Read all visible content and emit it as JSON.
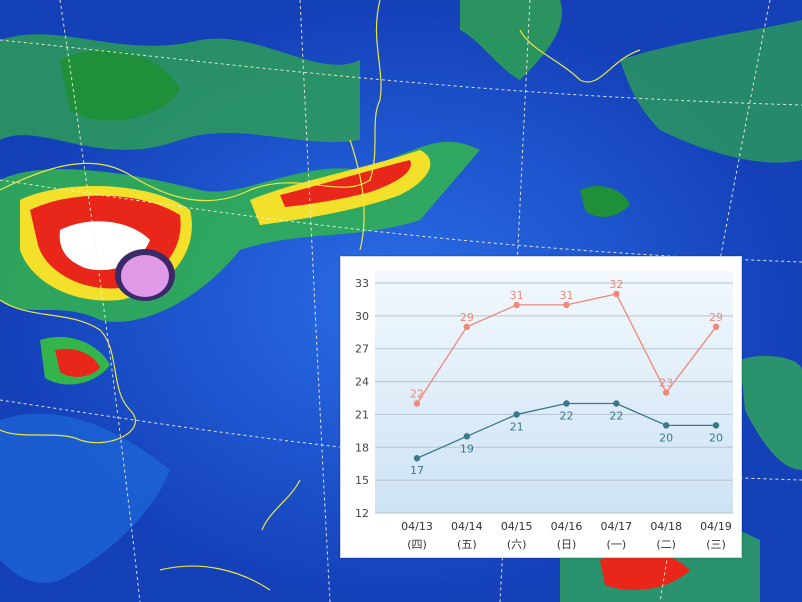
{
  "colors": {
    "high": "#ef8878",
    "low": "#3a788c",
    "grid": "#b7c3cf"
  },
  "chart_data": {
    "type": "line",
    "categories": [
      "04/13",
      "04/14",
      "04/15",
      "04/16",
      "04/17",
      "04/18",
      "04/19"
    ],
    "weekdays": [
      "(四)",
      "(五)",
      "(六)",
      "(日)",
      "(一)",
      "(二)",
      "(三)"
    ],
    "series": [
      {
        "values": [
          22,
          29,
          31,
          31,
          32,
          23,
          29
        ],
        "color": "#ef8878"
      },
      {
        "values": [
          17,
          19,
          21,
          22,
          22,
          20,
          20
        ],
        "color": "#3a788c"
      }
    ],
    "yticks": [
      12,
      15,
      18,
      21,
      24,
      27,
      30,
      33
    ],
    "ylim": [
      12,
      33
    ],
    "grid": true,
    "title": "",
    "xlabel": "",
    "ylabel": ""
  }
}
